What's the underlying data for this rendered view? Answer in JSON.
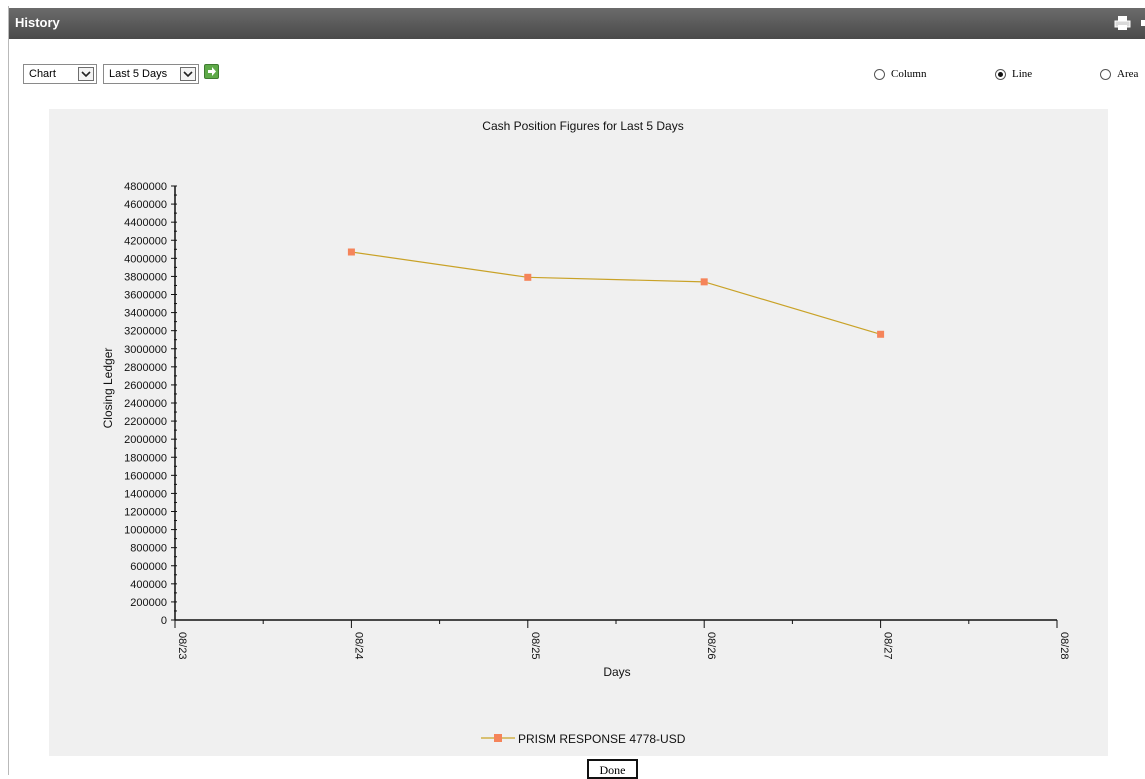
{
  "window": {
    "title": "History"
  },
  "header_icons": [
    {
      "name": "print-icon"
    },
    {
      "name": "minimize-icon"
    }
  ],
  "toolbar": {
    "view_select": {
      "value": "Chart"
    },
    "range_select": {
      "value": "Last 5 Days"
    },
    "go_icon": "arrow-right-icon"
  },
  "chart_type_options": [
    {
      "label": "Column",
      "selected": false
    },
    {
      "label": "Line",
      "selected": true
    },
    {
      "label": "Area",
      "selected": false
    }
  ],
  "chart_data": {
    "type": "line",
    "title": "Cash Position Figures for Last 5 Days",
    "xlabel": "Days",
    "ylabel": "Closing Ledger",
    "x_ticks": [
      "08/23",
      "08/24",
      "08/25",
      "08/26",
      "08/27",
      "08/28"
    ],
    "y_ticks": [
      0,
      200000,
      400000,
      600000,
      800000,
      1000000,
      1200000,
      1400000,
      1600000,
      1800000,
      2000000,
      2200000,
      2400000,
      2600000,
      2800000,
      3000000,
      3200000,
      3400000,
      3600000,
      3800000,
      4000000,
      4200000,
      4400000,
      4600000,
      4800000
    ],
    "ylim": [
      0,
      4800000
    ],
    "grid": false,
    "legend_position": "bottom",
    "series": [
      {
        "name": "PRISM RESPONSE 4778-USD",
        "color": "#f5845a",
        "line_color": "#c9a227",
        "x": [
          "08/24",
          "08/25",
          "08/26",
          "08/27"
        ],
        "values": [
          4070000,
          3790000,
          3740000,
          3160000
        ]
      }
    ]
  },
  "footer": {
    "done_label": "Done"
  }
}
